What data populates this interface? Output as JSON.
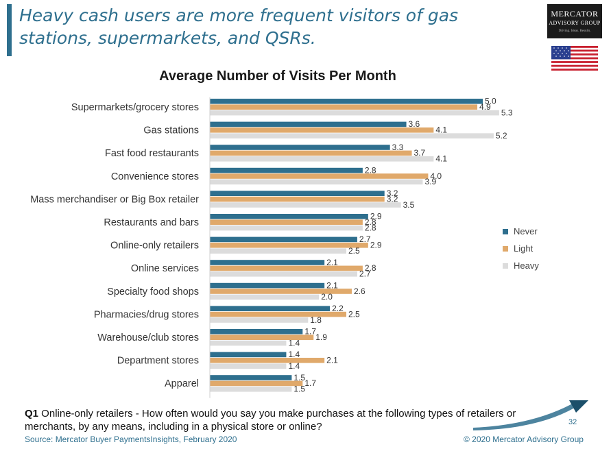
{
  "headline": "Heavy cash users are more frequent visitors of gas stations, supermarkets, and QSRs.",
  "logo": {
    "line1": "MERCATOR",
    "line2": "ADVISORY GROUP",
    "tagline": "Driving. Ideas. Results."
  },
  "flag_icon": "us-flag-icon",
  "question": {
    "label": "Q1",
    "text": " Online-only retailers - How often would you say you make purchases at the following types of retailers or merchants, by any means, including in a physical store or online?"
  },
  "source": "Source: Mercator Buyer PaymentsInsights, February 2020",
  "copyright": "© 2020  Mercator Advisory Group",
  "page_number": "32",
  "colors": {
    "never": "#2e6f8e",
    "light": "#e0a96b",
    "heavy": "#dcdcdc",
    "headline": "#2e6f8e"
  },
  "chart_data": {
    "type": "bar",
    "orientation": "horizontal",
    "title": "Average Number of Visits Per Month",
    "categories": [
      "Supermarkets/grocery stores",
      "Gas stations",
      "Fast food restaurants",
      "Convenience stores",
      "Mass merchandiser or Big Box retailer",
      "Restaurants and bars",
      "Online-only retailers",
      "Online services",
      "Specialty food shops",
      "Pharmacies/drug stores",
      "Warehouse/club stores",
      "Department stores",
      "Apparel"
    ],
    "series": [
      {
        "name": "Never",
        "values": [
          5.0,
          3.6,
          3.3,
          2.8,
          3.2,
          2.9,
          2.7,
          2.1,
          2.1,
          2.2,
          1.7,
          1.4,
          1.5
        ]
      },
      {
        "name": "Light",
        "values": [
          4.9,
          4.1,
          3.7,
          4.0,
          3.2,
          2.8,
          2.9,
          2.8,
          2.6,
          2.5,
          1.9,
          2.1,
          1.7
        ]
      },
      {
        "name": "Heavy",
        "values": [
          5.3,
          5.2,
          4.1,
          3.9,
          3.5,
          2.8,
          2.5,
          2.7,
          2.0,
          1.8,
          1.4,
          1.4,
          1.5
        ]
      }
    ],
    "xlim": [
      0,
      5.5
    ],
    "grid": false,
    "legend": "right"
  }
}
